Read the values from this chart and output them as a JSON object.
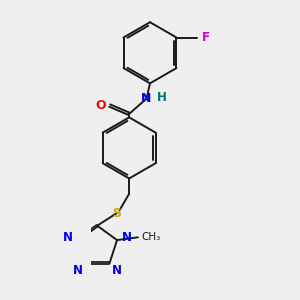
{
  "bg_color": "#efefef",
  "bond_color": "#1a1a1a",
  "atom_colors": {
    "O": "#ff0000",
    "N": "#0000ee",
    "H": "#007070",
    "F": "#cc00cc",
    "S": "#ccaa00",
    "C": "#1a1a1a"
  },
  "figsize": [
    3.0,
    3.0
  ],
  "dpi": 100
}
